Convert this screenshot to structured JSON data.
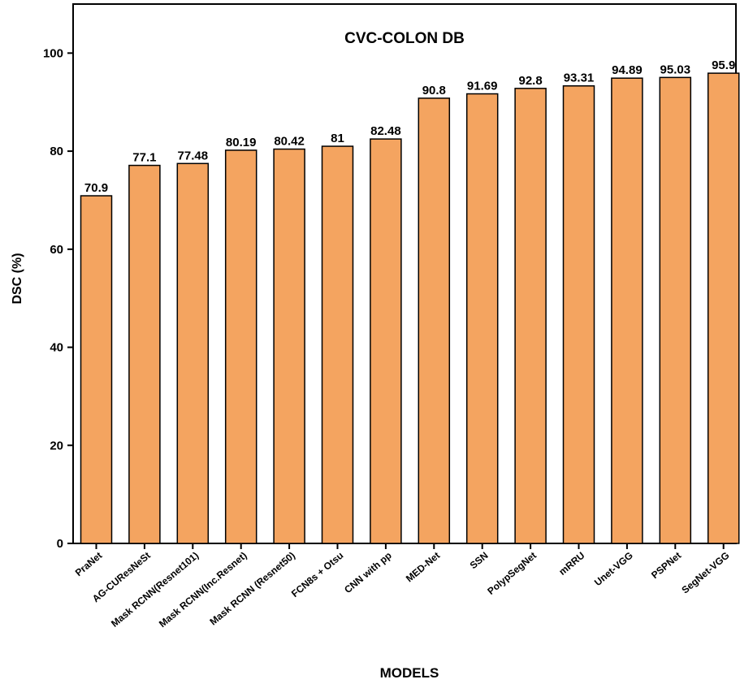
{
  "chart_data": {
    "type": "bar",
    "title": "CVC-COLON DB",
    "xlabel": "MODELS",
    "ylabel": "DSC (%)",
    "ylim": [
      0,
      110
    ],
    "yticks": [
      0,
      20,
      40,
      60,
      80,
      100
    ],
    "categories": [
      "PraNet",
      "AG-CUResNeSt",
      "Mask RCNN(Resnet101)",
      "Mask RCNN(Inc.Resnet)",
      "Mask RCNN (Resnet50)",
      "FCN8s + Otsu",
      "CNN with pp",
      "MED-Net",
      "SSN",
      "PolypSegNet",
      "mRRU",
      "Unet-VGG",
      "PSPNet",
      "SegNet-VGG"
    ],
    "values": [
      70.9,
      77.1,
      77.48,
      80.19,
      80.42,
      81,
      82.48,
      90.8,
      91.69,
      92.8,
      93.31,
      94.89,
      95.03,
      95.9
    ],
    "value_labels": [
      "70.9",
      "77.1",
      "77.48",
      "80.19",
      "80.42",
      "81",
      "82.48",
      "90.8",
      "91.69",
      "92.8",
      "93.31",
      "94.89",
      "95.03",
      "95.9"
    ],
    "grid": false,
    "legend": "none",
    "colors": {
      "bar_fill": "#F4A460",
      "bar_stroke": "#000000",
      "axis": "#000000"
    }
  }
}
